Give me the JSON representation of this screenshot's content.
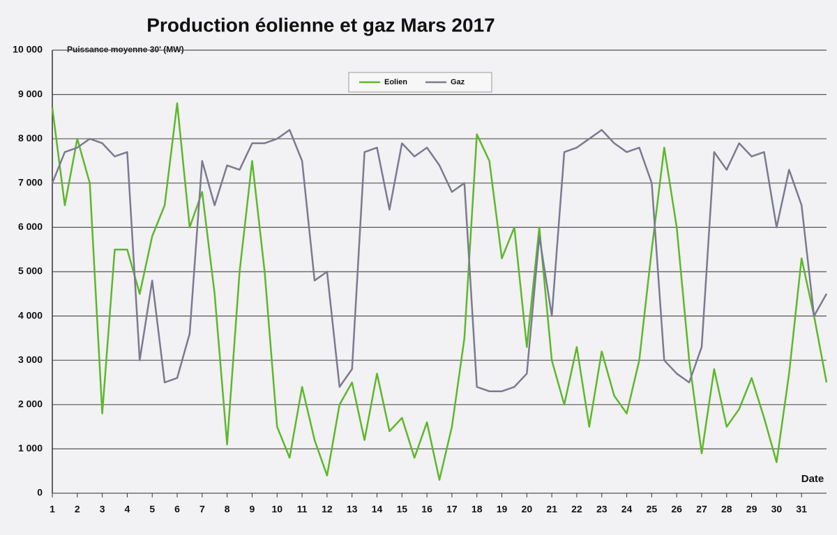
{
  "chart_data": {
    "type": "line",
    "title": "Production éolienne et gaz   Mars 2017",
    "y_label": "Puissance moyenne 30' (MW)",
    "x_label": "Date",
    "x": [
      1,
      1.5,
      2,
      2.5,
      3,
      3.5,
      4,
      4.5,
      5,
      5.5,
      6,
      6.5,
      7,
      7.5,
      8,
      8.5,
      9,
      9.5,
      10,
      10.5,
      11,
      11.5,
      12,
      12.5,
      13,
      13.5,
      14,
      14.5,
      15,
      15.5,
      16,
      16.5,
      17,
      17.5,
      18,
      18.5,
      19,
      19.5,
      20,
      20.5,
      21,
      21.5,
      22,
      22.5,
      23,
      23.5,
      24,
      24.5,
      25,
      25.5,
      26,
      26.5,
      27,
      27.5,
      28,
      28.5,
      29,
      29.5,
      30,
      30.5,
      31,
      31.5,
      32
    ],
    "series": [
      {
        "name": "Eolien",
        "color": "#5cb82a",
        "values": [
          8700,
          6500,
          8000,
          7000,
          1800,
          5500,
          5500,
          4500,
          5800,
          6500,
          8800,
          6000,
          6800,
          4500,
          1100,
          5000,
          7500,
          5000,
          1500,
          800,
          2400,
          1200,
          400,
          2000,
          2500,
          1200,
          2700,
          1400,
          1700,
          800,
          1600,
          300,
          1500,
          3500,
          8100,
          7500,
          5300,
          6000,
          3300,
          6000,
          3000,
          2000,
          3300,
          1500,
          3200,
          2200,
          1800,
          3000,
          5500,
          7800,
          6000,
          3000,
          900,
          2800,
          1500,
          1900,
          2600,
          1700,
          700,
          2700,
          5300,
          4000,
          2500
        ]
      },
      {
        "name": "Gaz",
        "color": "#7a7a90",
        "values": [
          7000,
          7700,
          7800,
          8000,
          7900,
          7600,
          7700,
          3000,
          4800,
          2500,
          2600,
          3600,
          7500,
          6500,
          7400,
          7300,
          7900,
          7900,
          8000,
          8200,
          7500,
          4800,
          5000,
          2400,
          2800,
          7700,
          7800,
          6400,
          7900,
          7600,
          7800,
          7400,
          6800,
          7000,
          2400,
          2300,
          2300,
          2400,
          2700,
          5800,
          4000,
          7700,
          7800,
          8000,
          8200,
          7900,
          7700,
          7800,
          7000,
          3000,
          2700,
          2500,
          3300,
          7700,
          7300,
          7900,
          7600,
          7700,
          6000,
          7300,
          6500,
          4000,
          4500
        ]
      }
    ],
    "xlim": [
      1,
      32
    ],
    "xticks": [
      1,
      2,
      3,
      4,
      5,
      6,
      7,
      8,
      9,
      10,
      11,
      12,
      13,
      14,
      15,
      16,
      17,
      18,
      19,
      20,
      21,
      22,
      23,
      24,
      25,
      26,
      27,
      28,
      29,
      30,
      31
    ],
    "ylim": [
      0,
      10000
    ],
    "yticks": [
      0,
      {
        "value": 1000,
        "label": "1 000"
      },
      {
        "value": 2000,
        "label": "2 000"
      },
      {
        "value": 3000,
        "label": "3 000"
      },
      {
        "value": 4000,
        "label": "4 000"
      },
      {
        "value": 5000,
        "label": "5 000"
      },
      {
        "value": 6000,
        "label": "6 000"
      },
      {
        "value": 7000,
        "label": "7 000"
      },
      {
        "value": 8000,
        "label": "8 000"
      },
      {
        "value": 9000,
        "label": "9 000"
      },
      {
        "value": 10000,
        "label": "10 000"
      }
    ],
    "grid": true
  }
}
